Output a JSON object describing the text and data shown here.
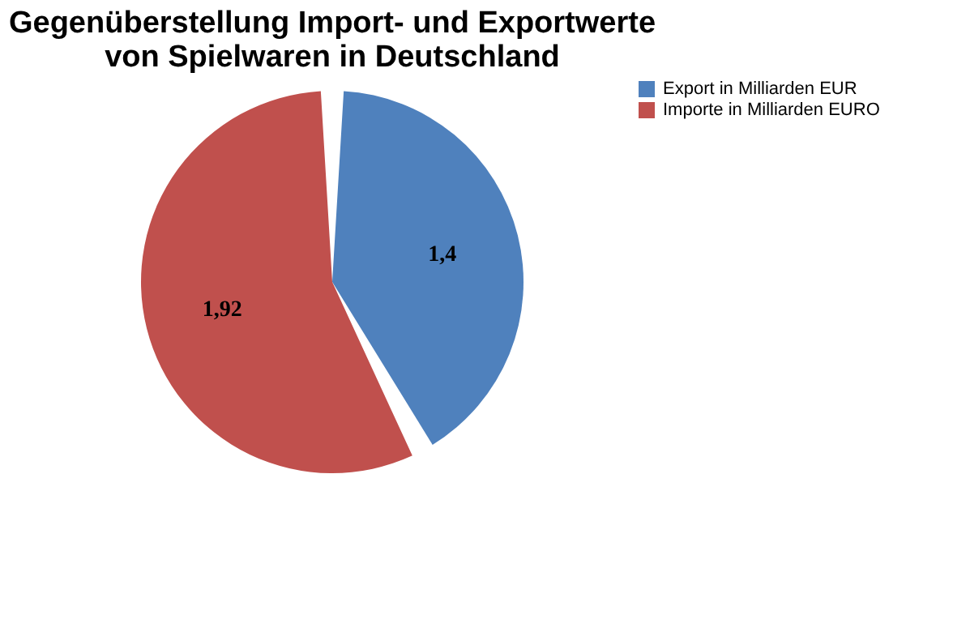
{
  "chart_data": {
    "type": "pie",
    "title": [
      "Gegenüberstellung Import- und Exportwerte",
      "von Spielwaren in Deutschland"
    ],
    "categories": [
      "Export in Milliarden EUR",
      "Importe in Milliarden EURO"
    ],
    "values": [
      1.4,
      1.92
    ],
    "colors": [
      "#4f81bd",
      "#c0504d"
    ],
    "value_labels": [
      "1,4",
      "1,92"
    ],
    "legend": "right"
  }
}
